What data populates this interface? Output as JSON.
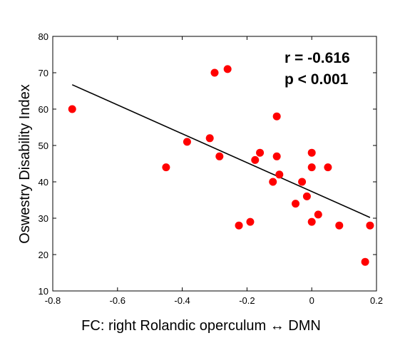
{
  "chart_data": {
    "type": "scatter",
    "xlabel": "FC: right Rolandic operculum ↔ DMN",
    "ylabel": "Oswestry Disability Index",
    "xlim": [
      -0.8,
      0.2
    ],
    "ylim": [
      10,
      80
    ],
    "xticks": [
      -0.8,
      -0.6,
      -0.4,
      -0.2,
      0,
      0.2
    ],
    "xtick_labels": [
      "-0.8",
      "-0.6",
      "-0.4",
      "-0.2",
      "0",
      "0.2"
    ],
    "yticks": [
      10,
      20,
      30,
      40,
      50,
      60,
      70,
      80
    ],
    "ytick_labels": [
      "10",
      "20",
      "30",
      "40",
      "50",
      "60",
      "70",
      "80"
    ],
    "grid": false,
    "marker_color": "#ff0000",
    "line_color": "#000000",
    "annotations": [
      "r = -0.616",
      "p < 0.001"
    ],
    "points": [
      {
        "x": -0.74,
        "y": 60
      },
      {
        "x": -0.45,
        "y": 44
      },
      {
        "x": -0.385,
        "y": 51
      },
      {
        "x": -0.3,
        "y": 70
      },
      {
        "x": -0.26,
        "y": 71
      },
      {
        "x": -0.315,
        "y": 52
      },
      {
        "x": -0.285,
        "y": 47
      },
      {
        "x": -0.225,
        "y": 28
      },
      {
        "x": -0.19,
        "y": 29
      },
      {
        "x": -0.175,
        "y": 46
      },
      {
        "x": -0.16,
        "y": 48
      },
      {
        "x": -0.12,
        "y": 40
      },
      {
        "x": -0.108,
        "y": 58
      },
      {
        "x": -0.108,
        "y": 47
      },
      {
        "x": -0.1,
        "y": 42
      },
      {
        "x": -0.05,
        "y": 34
      },
      {
        "x": -0.03,
        "y": 40
      },
      {
        "x": -0.015,
        "y": 36
      },
      {
        "x": 0,
        "y": 48
      },
      {
        "x": 0,
        "y": 44
      },
      {
        "x": 0,
        "y": 29
      },
      {
        "x": 0.02,
        "y": 31
      },
      {
        "x": 0.05,
        "y": 44
      },
      {
        "x": 0.085,
        "y": 28
      },
      {
        "x": 0.165,
        "y": 18
      },
      {
        "x": 0.18,
        "y": 28
      }
    ],
    "fit_line": {
      "x": [
        -0.74,
        0.18
      ],
      "y": [
        66.7,
        30.2
      ]
    }
  }
}
